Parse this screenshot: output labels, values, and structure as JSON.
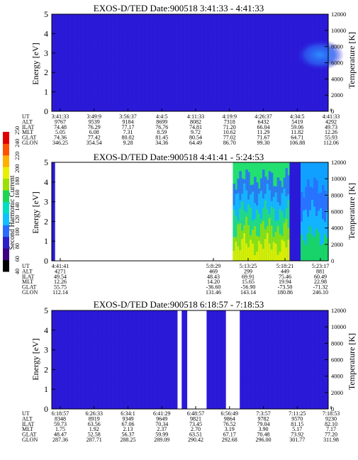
{
  "colorbar": {
    "label": "Second Harmonic Current",
    "ticks": [
      "40",
      "60",
      "80",
      "100",
      "120",
      "140",
      "160",
      "180",
      "200",
      "220",
      "240",
      "250"
    ],
    "range": [
      40,
      250
    ],
    "colors": [
      "#000000",
      "#3c0080",
      "#2e1fc8",
      "#2b6cff",
      "#10c0ff",
      "#00e0c0",
      "#19d850",
      "#9be000",
      "#e8f000",
      "#ffb000",
      "#ff5000",
      "#e00000"
    ]
  },
  "row_labels": [
    "UT",
    "ALT",
    "ILAT",
    "MLT",
    "GLAT",
    "GLON"
  ],
  "chart_data": [
    {
      "type": "heatmap",
      "title": "EXOS-D/TED   Date:900518   3:41:33 - 4:41:33",
      "ylabel": "Energy [eV]",
      "ylabel2": "Temperature [K]",
      "ylim": [
        0,
        5
      ],
      "y2lim": [
        0,
        12000
      ],
      "yticks": [
        "0",
        "1",
        "2",
        "3",
        "4",
        "5"
      ],
      "y2ticks": [
        "0",
        "2000",
        "4000",
        "6000",
        "8000",
        "10000",
        "12000"
      ],
      "fill_color": "#2a1ad8",
      "hot_spots": [
        {
          "x_frac": 0.97,
          "y": 2.9,
          "color": "#2c6cf8"
        }
      ],
      "table": [
        [
          "3:41:33",
          "3:49:9",
          "3:56:37",
          "4:4:5",
          "4:11:33",
          "4:19:9",
          "4:26:37",
          "4:34:5",
          "4:41:33"
        ],
        [
          "9767",
          "9539",
          "9184",
          "8699",
          "8082",
          "7318",
          "6432",
          "5419",
          "4292"
        ],
        [
          "74.48",
          "76.29",
          "77.17",
          "76.76",
          "74.81",
          "71.20",
          "66.04",
          "59.06",
          "49.73"
        ],
        [
          "5.05",
          "6.08",
          "7.31",
          "8.59",
          "9.72",
          "10.62",
          "11.29",
          "11.82",
          "12.26"
        ],
        [
          "74.36",
          "77.42",
          "80.02",
          "81.45",
          "80.54",
          "77.02",
          "71.67",
          "64.71",
          "55.93"
        ],
        [
          "346.25",
          "354.54",
          "9.28",
          "34.36",
          "64.49",
          "86.70",
          "99.30",
          "106.88",
          "112.06"
        ]
      ]
    },
    {
      "type": "heatmap",
      "title": "EXOS-D/TED   Date:900518   4:41:41 - 5:24:53",
      "ylabel": "Energy [eV]",
      "ylabel2": "Temperature [K]",
      "ylim": [
        0,
        5
      ],
      "y2lim": [
        0,
        12000
      ],
      "yticks": [
        "0",
        "1",
        "2",
        "3",
        "4",
        "5"
      ],
      "y2ticks": [
        "0",
        "2000",
        "4000",
        "6000",
        "8000",
        "10000",
        "12000"
      ],
      "data_segments": [
        {
          "x_start_frac": 0.0,
          "x_end_frac": 0.012,
          "fill": "#2a1ad8"
        },
        {
          "x_start_frac": 0.655,
          "x_end_frac": 0.86,
          "fill": "#22e070",
          "levels": [
            "#2b6cff",
            "#10c0ff",
            "#22e070",
            "#9be000",
            "#e8f000"
          ]
        },
        {
          "x_start_frac": 0.86,
          "x_end_frac": 0.9,
          "fill": "#2a1ad8"
        },
        {
          "x_start_frac": 0.9,
          "x_end_frac": 1.0,
          "fill": "#10a0ff",
          "levels": [
            "#2b6cff",
            "#10c0ff",
            "#19d850"
          ]
        }
      ],
      "table": [
        [
          "4:41:41",
          "5:8:29",
          "5:13:25",
          "5:18:21",
          "5:23:17"
        ],
        [
          "4271",
          "469",
          "299",
          "449",
          "881"
        ],
        [
          "49.54",
          "48.43",
          "69.91",
          "75.46",
          "60.49"
        ],
        [
          "12.26",
          "14.20",
          "15.65",
          "19.94",
          "22.98"
        ],
        [
          "55.75",
          "-36.60",
          "-56.90",
          "-73.50",
          "-71.32"
        ],
        [
          "112.14",
          "131.46",
          "143.14",
          "180.86",
          "246.10"
        ]
      ]
    },
    {
      "type": "heatmap",
      "title": "EXOS-D/TED   Date:900518   6:18:57 - 7:18:53",
      "ylabel": "Energy [eV]",
      "ylabel2": "Temperature [K]",
      "ylim": [
        0,
        5
      ],
      "y2lim": [
        0,
        12000
      ],
      "yticks": [
        "0",
        "1",
        "2",
        "3",
        "4",
        "5"
      ],
      "y2ticks": [
        "0",
        "2000",
        "4000",
        "6000",
        "8000",
        "10000",
        "12000"
      ],
      "fill_color": "#2a1ad8",
      "gap_segments": [
        {
          "x_start_frac": 0.455,
          "x_end_frac": 0.47
        },
        {
          "x_start_frac": 0.49,
          "x_end_frac": 0.56
        },
        {
          "x_start_frac": 0.63,
          "x_end_frac": 0.68
        }
      ],
      "table": [
        [
          "6:18:57",
          "6:26:33",
          "6:34:1",
          "6:41:29",
          "6:48:57",
          "6:56:49",
          "7:3:57",
          "7:11:25",
          "7:18:53"
        ],
        [
          "8348",
          "8919",
          "9349",
          "9649",
          "9821",
          "9864",
          "9782",
          "9570",
          "9230"
        ],
        [
          "59.73",
          "63.56",
          "67.06",
          "70.34",
          "73.45",
          "76.52",
          "79.04",
          "81.15",
          "82.10"
        ],
        [
          "1.75",
          "1.92",
          "2.13",
          "2.37",
          "2.70",
          "3.19",
          "3.90",
          "5.17",
          "7.17"
        ],
        [
          "48.47",
          "52.58",
          "56.37",
          "59.99",
          "63.51",
          "67.17",
          "70.48",
          "73.92",
          "77.20"
        ],
        [
          "287.36",
          "287.71",
          "288.25",
          "289.09",
          "290.42",
          "292.68",
          "296.00",
          "301.77",
          "311.98"
        ]
      ]
    }
  ]
}
